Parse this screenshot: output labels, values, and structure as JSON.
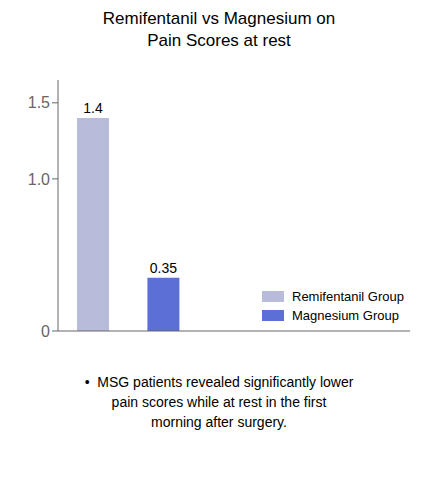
{
  "chart_data": {
    "type": "bar",
    "title": "Remifentanil vs Magnesium on\nPain Scores at rest",
    "categories": [
      null,
      null,
      null,
      null,
      null
    ],
    "series": [
      {
        "name": "Remifentanil Group",
        "color": "#b8bcda",
        "values": [
          1.4,
          null,
          null,
          null,
          null
        ]
      },
      {
        "name": "Magnesium Group",
        "color": "#5b6fd6",
        "values": [
          null,
          0.35,
          null,
          null,
          null
        ]
      }
    ],
    "ylim": [
      0,
      1.65
    ],
    "yticks": [
      0,
      {
        "value": 1,
        "label": "1.0"
      },
      1.5
    ],
    "data_labels": true,
    "legend": "lower right",
    "grid": false,
    "tick_labels": "y",
    "annotation": [
      "•  MSG patients revealed significantly lower",
      "pain scores while at rest in the first",
      "morning after surgery."
    ]
  }
}
